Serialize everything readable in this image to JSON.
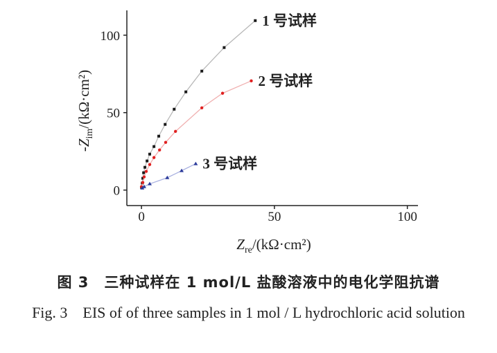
{
  "chart_data": {
    "type": "scatter",
    "xlabel": {
      "main": "Z",
      "sub": "re",
      "rest": "/(kΩ·cm²)"
    },
    "ylabel": {
      "main": "-Z",
      "sub": "im",
      "rest": "/(kΩ·cm²)"
    },
    "xlim": [
      -5.5,
      104
    ],
    "ylim": [
      -10,
      116
    ],
    "xticks": [
      0,
      50,
      100
    ],
    "yticks": [
      0,
      50,
      100
    ],
    "series": [
      {
        "name": "1 号试样",
        "color": "#1a1a1a",
        "line_color": "#b8b8b8",
        "marker": "square",
        "x": [
          0,
          0.3,
          0.5,
          0.8,
          1.3,
          2.1,
          3.1,
          4.7,
          6.5,
          8.9,
          12.3,
          16.7,
          22.7,
          31.1,
          42.8
        ],
        "values": [
          1.8,
          4.5,
          7.6,
          11.2,
          14.7,
          18.8,
          23.2,
          28.1,
          34.8,
          42.4,
          52.2,
          63.4,
          76.8,
          92,
          109.4
        ]
      },
      {
        "name": "2 号试样",
        "color": "#e02020",
        "line_color": "#f0b0b0",
        "marker": "circle",
        "x": [
          0,
          0.5,
          1,
          1.8,
          3.1,
          4.7,
          6.8,
          9.1,
          12.8,
          22.7,
          30.5,
          41.3
        ],
        "values": [
          2.2,
          4.9,
          8.5,
          12.1,
          16.5,
          21,
          25.9,
          30.8,
          37.9,
          53.1,
          62.5,
          70.5
        ]
      },
      {
        "name": "3 号试样",
        "color": "#2a3a9a",
        "line_color": "#a8b0e0",
        "marker": "triangle",
        "x": [
          0.3,
          1,
          3.1,
          9.7,
          15.1,
          20.4
        ],
        "values": [
          1.3,
          2.2,
          4,
          8,
          12.5,
          17
        ]
      }
    ]
  },
  "caption": {
    "cn": "图 3　三种试样在 1 mol/L 盐酸溶液中的电化学阻抗谱",
    "en": "Fig. 3　EIS of of three samples in 1 mol / L hydrochloric acid solution"
  }
}
